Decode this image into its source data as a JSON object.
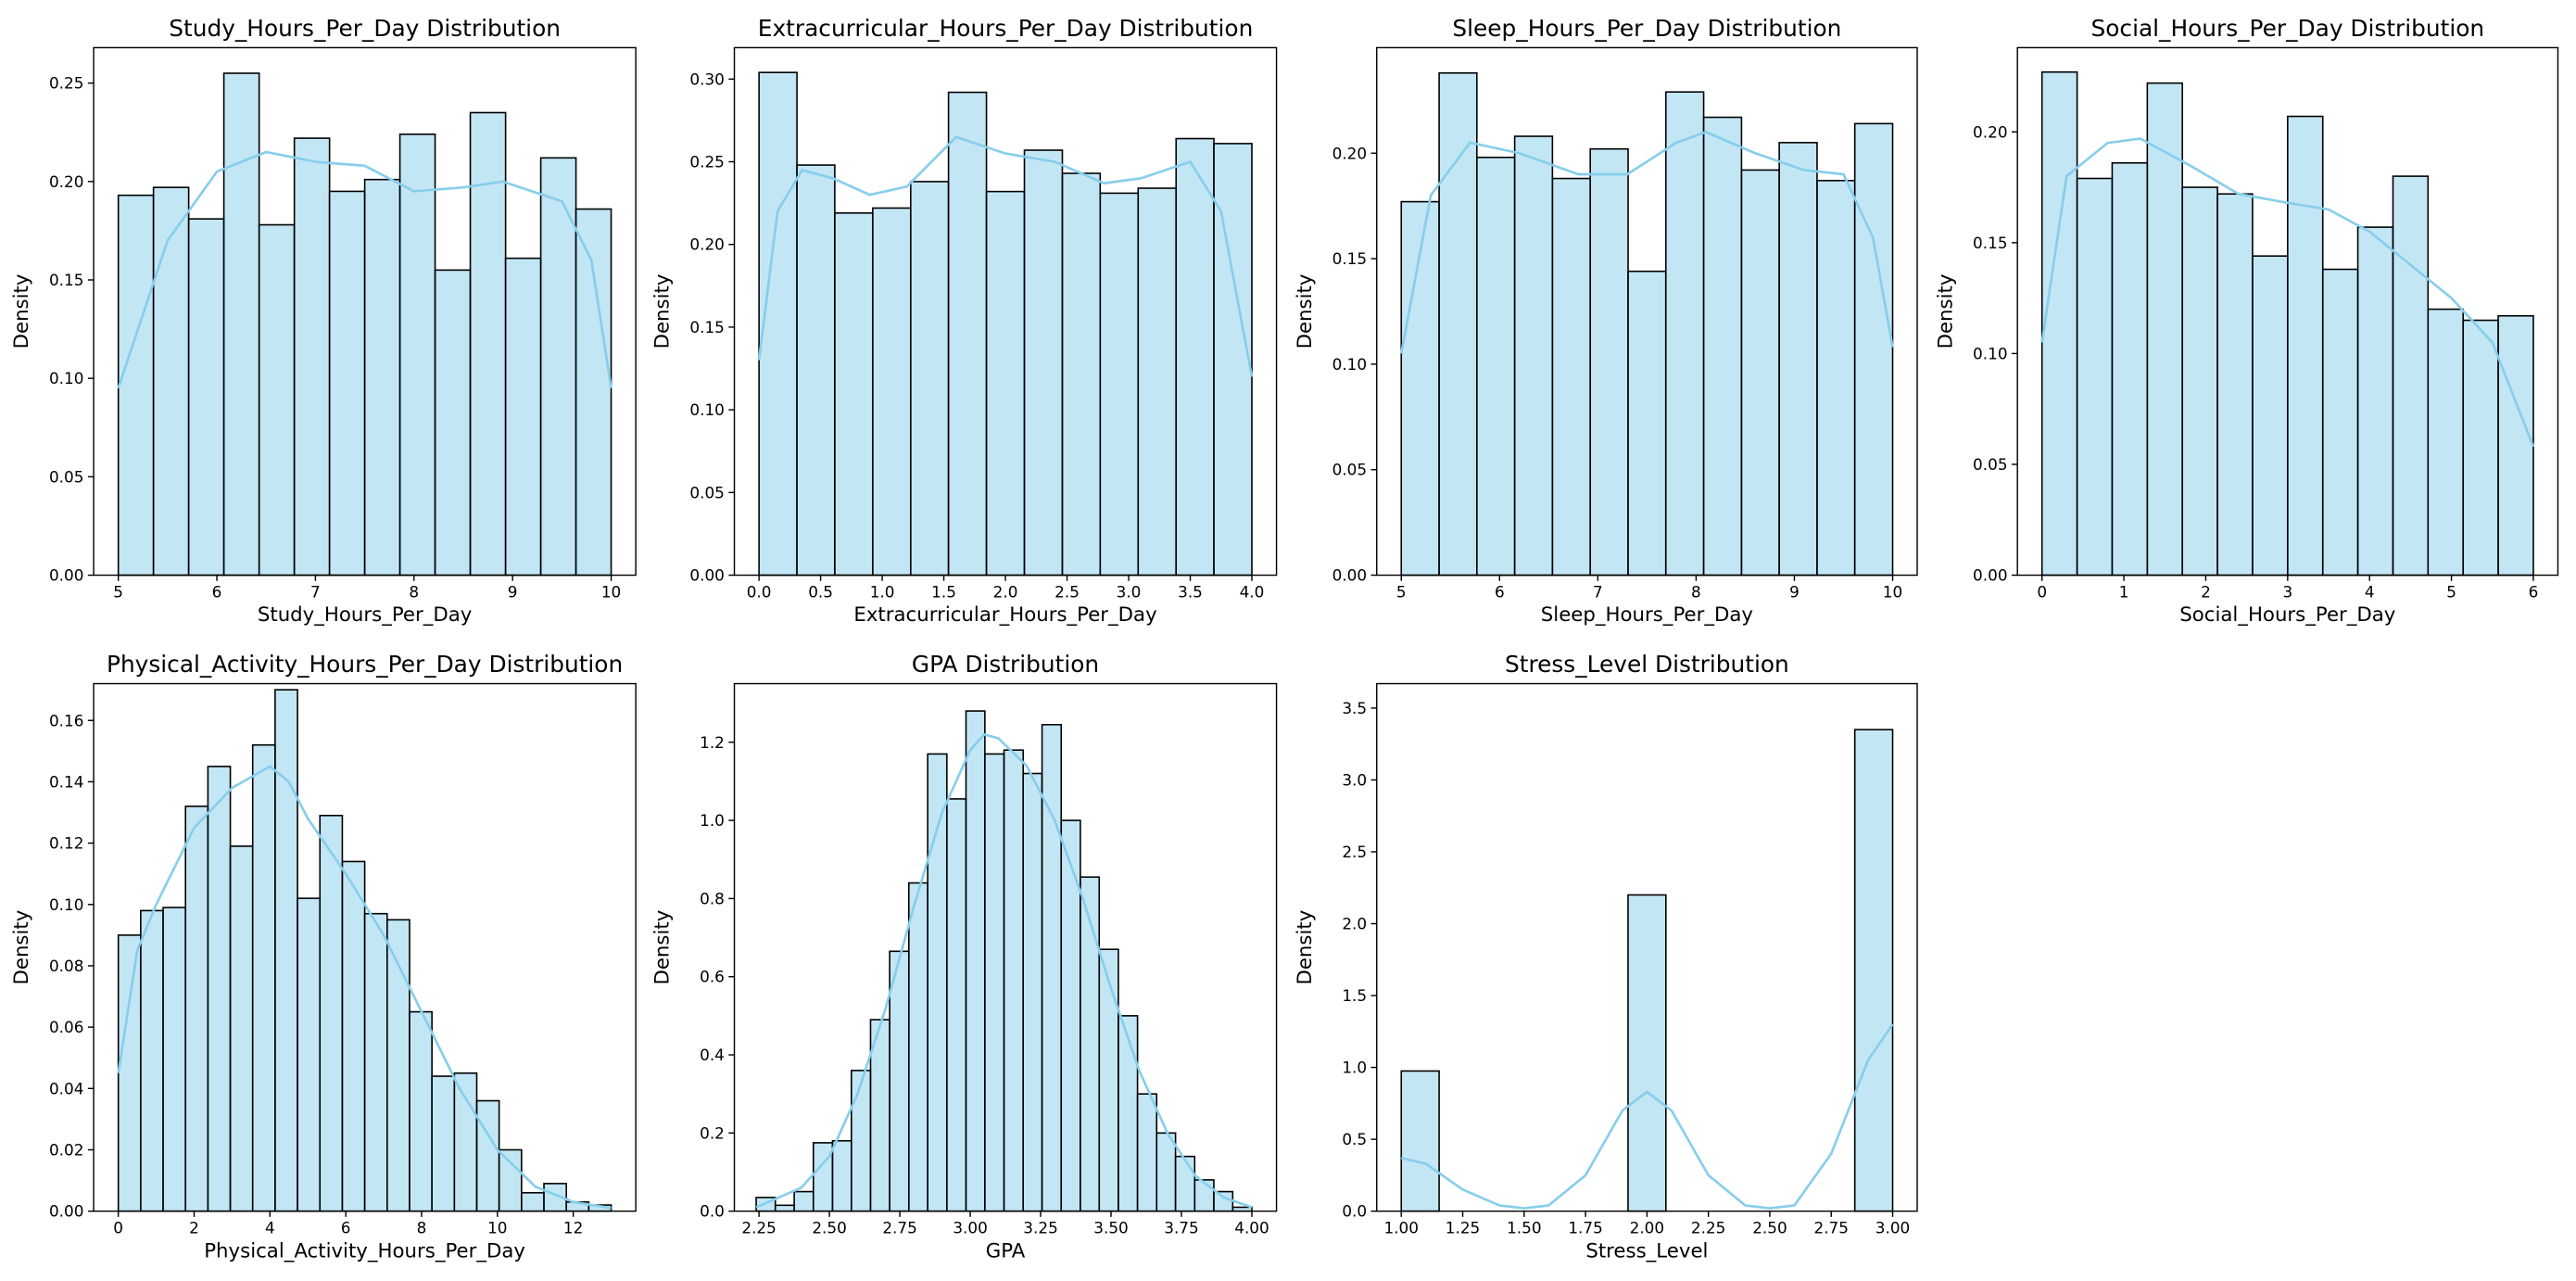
{
  "chart_data": [
    {
      "type": "histogram",
      "title": "Study_Hours_Per_Day Distribution",
      "xlabel": "Study_Hours_Per_Day",
      "ylabel": "Density",
      "color": "#87ceeb",
      "bins": [
        5,
        5.357,
        5.714,
        6.071,
        6.429,
        6.786,
        7.143,
        7.5,
        7.857,
        8.214,
        8.571,
        8.929,
        9.286,
        9.643,
        10
      ],
      "values": [
        0.193,
        0.197,
        0.181,
        0.255,
        0.178,
        0.222,
        0.195,
        0.201,
        0.224,
        0.155,
        0.235,
        0.161,
        0.212,
        0.186
      ],
      "kde": {
        "x": [
          5,
          5.5,
          6,
          6.5,
          7,
          7.5,
          8,
          8.5,
          8.9,
          9.5,
          9.8,
          10
        ],
        "values": [
          0.095,
          0.17,
          0.205,
          0.215,
          0.21,
          0.208,
          0.195,
          0.197,
          0.2,
          0.19,
          0.16,
          0.095
        ]
      },
      "xlim": [
        4.75,
        10.25
      ],
      "xticks": [
        5,
        6,
        7,
        8,
        9,
        10
      ],
      "ylim": [
        0,
        0.268
      ],
      "yticks": [
        {
          "value": 0,
          "label": "0.00"
        },
        0.05,
        {
          "value": 0.1,
          "label": "0.10"
        },
        0.15,
        {
          "value": 0.2,
          "label": "0.20"
        },
        0.25
      ]
    },
    {
      "type": "histogram",
      "title": "Extracurricular_Hours_Per_Day Distribution",
      "xlabel": "Extracurricular_Hours_Per_Day",
      "ylabel": "Density",
      "color": "#87ceeb",
      "bins": [
        0,
        0.308,
        0.615,
        0.923,
        1.231,
        1.538,
        1.846,
        2.154,
        2.462,
        2.769,
        3.077,
        3.385,
        3.692,
        4
      ],
      "values": [
        0.304,
        0.248,
        0.219,
        0.222,
        0.238,
        0.292,
        0.232,
        0.257,
        0.243,
        0.231,
        0.234,
        0.264,
        0.261
      ],
      "kde": {
        "x": [
          0,
          0.15,
          0.35,
          0.6,
          0.9,
          1.2,
          1.6,
          2.0,
          2.4,
          2.8,
          3.1,
          3.5,
          3.75,
          4.0
        ],
        "values": [
          0.13,
          0.22,
          0.245,
          0.24,
          0.23,
          0.235,
          0.265,
          0.255,
          0.25,
          0.237,
          0.24,
          0.25,
          0.22,
          0.12
        ]
      },
      "xlim": [
        -0.2,
        4.2
      ],
      "xticks": [
        {
          "value": 0,
          "label": "0.0"
        },
        0.5,
        {
          "value": 1,
          "label": "1.0"
        },
        1.5,
        {
          "value": 2,
          "label": "2.0"
        },
        2.5,
        {
          "value": 3,
          "label": "3.0"
        },
        3.5,
        {
          "value": 4,
          "label": "4.0"
        }
      ],
      "ylim": [
        0,
        0.319
      ],
      "yticks": [
        {
          "value": 0,
          "label": "0.00"
        },
        0.05,
        {
          "value": 0.1,
          "label": "0.10"
        },
        0.15,
        {
          "value": 0.2,
          "label": "0.20"
        },
        0.25,
        {
          "value": 0.3,
          "label": "0.30"
        }
      ]
    },
    {
      "type": "histogram",
      "title": "Sleep_Hours_Per_Day Distribution",
      "xlabel": "Sleep_Hours_Per_Day",
      "ylabel": "Density",
      "color": "#87ceeb",
      "bins": [
        5,
        5.385,
        5.769,
        6.154,
        6.538,
        6.923,
        7.308,
        7.692,
        8.077,
        8.462,
        8.846,
        9.231,
        9.615,
        10
      ],
      "values": [
        0.177,
        0.238,
        0.198,
        0.208,
        0.188,
        0.202,
        0.144,
        0.229,
        0.217,
        0.192,
        0.205,
        0.187,
        0.214
      ],
      "kde": {
        "x": [
          5,
          5.3,
          5.7,
          6.2,
          6.8,
          7.3,
          7.8,
          8.1,
          8.6,
          9.1,
          9.5,
          9.8,
          10
        ],
        "values": [
          0.105,
          0.18,
          0.205,
          0.2,
          0.19,
          0.19,
          0.205,
          0.21,
          0.2,
          0.192,
          0.19,
          0.16,
          0.108
        ]
      },
      "xlim": [
        4.75,
        10.25
      ],
      "xticks": [
        5,
        6,
        7,
        8,
        9,
        10
      ],
      "ylim": [
        0,
        0.25
      ],
      "yticks": [
        {
          "value": 0,
          "label": "0.00"
        },
        0.05,
        {
          "value": 0.1,
          "label": "0.10"
        },
        0.15,
        {
          "value": 0.2,
          "label": "0.20"
        }
      ]
    },
    {
      "type": "histogram",
      "title": "Social_Hours_Per_Day Distribution",
      "xlabel": "Social_Hours_Per_Day",
      "ylabel": "Density",
      "color": "#87ceeb",
      "bins": [
        0,
        0.429,
        0.857,
        1.286,
        1.714,
        2.143,
        2.571,
        3,
        3.429,
        3.857,
        4.286,
        4.714,
        5.143,
        5.571,
        6
      ],
      "values": [
        0.227,
        0.179,
        0.186,
        0.222,
        0.175,
        0.172,
        0.144,
        0.207,
        0.138,
        0.157,
        0.18,
        0.12,
        0.115,
        0.117
      ],
      "kde": {
        "x": [
          0,
          0.3,
          0.8,
          1.2,
          1.8,
          2.4,
          3,
          3.5,
          4,
          4.5,
          5,
          5.5,
          6
        ],
        "values": [
          0.105,
          0.18,
          0.195,
          0.197,
          0.185,
          0.172,
          0.168,
          0.165,
          0.155,
          0.14,
          0.125,
          0.105,
          0.058
        ]
      },
      "xlim": [
        -0.3,
        6.3
      ],
      "xticks": [
        0,
        1,
        2,
        3,
        4,
        5,
        6
      ],
      "ylim": [
        0,
        0.238
      ],
      "yticks": [
        {
          "value": 0,
          "label": "0.00"
        },
        0.05,
        {
          "value": 0.1,
          "label": "0.10"
        },
        0.15,
        {
          "value": 0.2,
          "label": "0.20"
        }
      ]
    },
    {
      "type": "histogram",
      "title": "Physical_Activity_Hours_Per_Day Distribution",
      "xlabel": "Physical_Activity_Hours_Per_Day",
      "ylabel": "Density",
      "color": "#87ceeb",
      "bins": [
        0,
        0.591,
        1.182,
        1.773,
        2.364,
        2.955,
        3.545,
        4.136,
        4.727,
        5.318,
        5.909,
        6.5,
        7.091,
        7.682,
        8.273,
        8.864,
        9.455,
        10.045,
        10.636,
        11.227,
        11.818,
        12.409,
        13
      ],
      "values": [
        0.09,
        0.098,
        0.099,
        0.132,
        0.145,
        0.119,
        0.152,
        0.17,
        0.102,
        0.129,
        0.114,
        0.097,
        0.095,
        0.065,
        0.044,
        0.045,
        0.036,
        0.02,
        0.006,
        0.009,
        0.003,
        0.002
      ],
      "kde": {
        "x": [
          0,
          0.5,
          1,
          2,
          3,
          4,
          4.5,
          5,
          6,
          7,
          8,
          9,
          10,
          11,
          12,
          13
        ],
        "values": [
          0.045,
          0.085,
          0.1,
          0.125,
          0.138,
          0.145,
          0.14,
          0.128,
          0.11,
          0.09,
          0.065,
          0.04,
          0.02,
          0.008,
          0.003,
          0.001
        ]
      },
      "xlim": [
        -0.65,
        13.65
      ],
      "xticks": [
        0,
        2,
        4,
        6,
        8,
        10,
        12
      ],
      "ylim": [
        0,
        0.172
      ],
      "yticks": [
        {
          "value": 0,
          "label": "0.00"
        },
        0.02,
        0.04,
        0.06,
        0.08,
        {
          "value": 0.1,
          "label": "0.10"
        },
        0.12,
        0.14,
        0.16
      ]
    },
    {
      "type": "histogram",
      "title": "GPA Distribution",
      "xlabel": "GPA",
      "ylabel": "Density",
      "color": "#87ceeb",
      "bins": [
        2.24,
        2.308,
        2.375,
        2.443,
        2.511,
        2.578,
        2.646,
        2.714,
        2.782,
        2.849,
        2.917,
        2.985,
        3.052,
        3.12,
        3.188,
        3.255,
        3.323,
        3.391,
        3.458,
        3.526,
        3.594,
        3.662,
        3.729,
        3.797,
        3.865,
        3.932,
        4.0
      ],
      "values": [
        0.035,
        0.015,
        0.05,
        0.175,
        0.18,
        0.36,
        0.49,
        0.665,
        0.84,
        1.17,
        1.055,
        1.28,
        1.17,
        1.18,
        1.12,
        1.245,
        1.0,
        0.855,
        0.67,
        0.5,
        0.3,
        0.2,
        0.14,
        0.08,
        0.05,
        0.01
      ],
      "kde": {
        "x": [
          2.24,
          2.4,
          2.5,
          2.6,
          2.7,
          2.8,
          2.9,
          3.0,
          3.05,
          3.1,
          3.2,
          3.3,
          3.4,
          3.5,
          3.6,
          3.7,
          3.8,
          3.9,
          4.0
        ],
        "values": [
          0.01,
          0.06,
          0.14,
          0.3,
          0.52,
          0.78,
          1.02,
          1.18,
          1.22,
          1.21,
          1.14,
          1.0,
          0.8,
          0.57,
          0.36,
          0.2,
          0.09,
          0.035,
          0.01
        ]
      },
      "xlim": [
        2.1625,
        4.0875
      ],
      "xticks": [
        2.25,
        {
          "value": 2.5,
          "label": "2.50"
        },
        2.75,
        {
          "value": 3,
          "label": "3.00"
        },
        3.25,
        {
          "value": 3.5,
          "label": "3.50"
        },
        3.75,
        {
          "value": 4,
          "label": "4.00"
        }
      ],
      "ylim": [
        0,
        1.35
      ],
      "yticks": [
        {
          "value": 0,
          "label": "0.0"
        },
        0.2,
        0.4,
        0.6,
        0.8,
        {
          "value": 1,
          "label": "1.0"
        },
        1.2
      ]
    },
    {
      "type": "histogram",
      "title": "Stress_Level Distribution",
      "xlabel": "Stress_Level",
      "ylabel": "Density",
      "color": "#87ceeb",
      "bins": [
        1,
        1.154,
        1.308,
        1.462,
        1.615,
        1.769,
        1.923,
        2.077,
        2.231,
        2.385,
        2.538,
        2.692,
        2.846,
        3
      ],
      "values": [
        0.975,
        0,
        0,
        0,
        0,
        0,
        2.2,
        0,
        0,
        0,
        0,
        0,
        3.35
      ],
      "kde": {
        "x": [
          1,
          1.1,
          1.25,
          1.4,
          1.5,
          1.6,
          1.75,
          1.9,
          2.0,
          2.1,
          2.25,
          2.4,
          2.5,
          2.6,
          2.75,
          2.9,
          3.0
        ],
        "values": [
          0.37,
          0.33,
          0.15,
          0.04,
          0.02,
          0.04,
          0.25,
          0.7,
          0.83,
          0.7,
          0.25,
          0.04,
          0.02,
          0.04,
          0.4,
          1.05,
          1.3
        ]
      },
      "xlim": [
        0.9,
        3.1
      ],
      "xticks": [
        {
          "value": 1,
          "label": "1.00"
        },
        1.25,
        {
          "value": 1.5,
          "label": "1.50"
        },
        1.75,
        {
          "value": 2,
          "label": "2.00"
        },
        2.25,
        {
          "value": 2.5,
          "label": "2.50"
        },
        2.75,
        {
          "value": 3,
          "label": "3.00"
        }
      ],
      "ylim": [
        0,
        3.67
      ],
      "yticks": [
        {
          "value": 0,
          "label": "0.0"
        },
        0.5,
        {
          "value": 1,
          "label": "1.0"
        },
        1.5,
        {
          "value": 2,
          "label": "2.0"
        },
        2.5,
        {
          "value": 3,
          "label": "3.0"
        },
        3.5
      ]
    }
  ]
}
